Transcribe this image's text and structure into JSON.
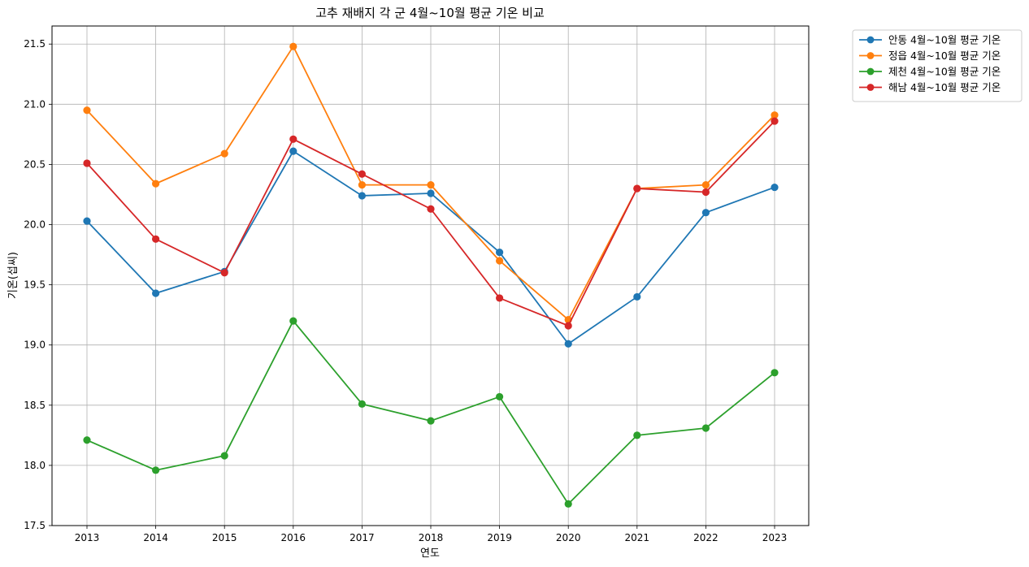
{
  "chart_data": {
    "type": "line",
    "title": "고추 재배지 각 군 4월~10월 평균 기온 비교",
    "xlabel": "연도",
    "ylabel": "기온(섭씨)",
    "x": [
      2013,
      2014,
      2015,
      2016,
      2017,
      2018,
      2019,
      2020,
      2021,
      2022,
      2023
    ],
    "ylim": [
      17.5,
      21.65
    ],
    "yticks": [
      17.5,
      18.0,
      18.5,
      19.0,
      19.5,
      20.0,
      20.5,
      21.0,
      21.5
    ],
    "grid": true,
    "legend_position": "outside-top-right",
    "series": [
      {
        "name": "안동 4월~10월 평균 기온",
        "color": "#1f77b4",
        "values": [
          20.03,
          19.43,
          19.61,
          20.61,
          20.24,
          20.26,
          19.77,
          19.01,
          19.4,
          20.1,
          20.31
        ]
      },
      {
        "name": "정읍 4월~10월 평균 기온",
        "color": "#ff7f0e",
        "values": [
          20.95,
          20.34,
          20.59,
          21.48,
          20.33,
          20.33,
          19.7,
          19.21,
          20.3,
          20.33,
          20.91
        ]
      },
      {
        "name": "제천 4월~10월 평균 기온",
        "color": "#2ca02c",
        "values": [
          18.21,
          17.96,
          18.08,
          19.2,
          18.51,
          18.37,
          18.57,
          17.68,
          18.25,
          18.31,
          18.77
        ]
      },
      {
        "name": "해남 4월~10월 평균 기온",
        "color": "#d62728",
        "values": [
          20.51,
          19.88,
          19.6,
          20.71,
          20.42,
          20.13,
          19.39,
          19.16,
          20.3,
          20.27,
          20.86
        ]
      }
    ]
  }
}
